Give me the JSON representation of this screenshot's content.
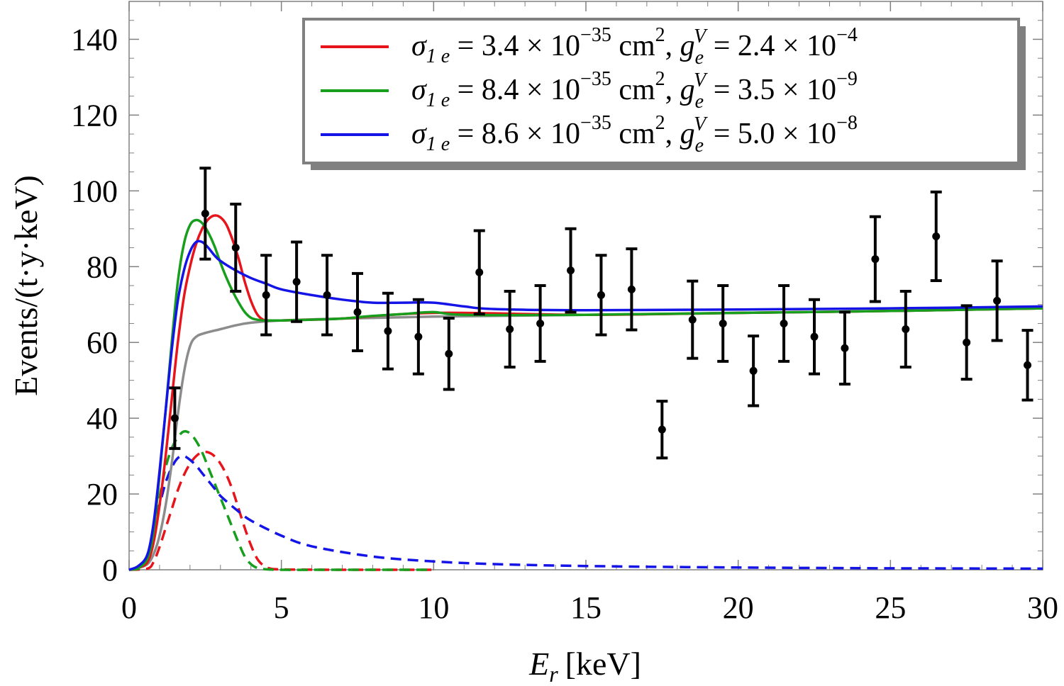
{
  "chart_data": {
    "type": "line",
    "title": "",
    "xlabel": "E_r [keV]",
    "xlabel_main": "E",
    "xlabel_sub": "r",
    "xlabel_unit": "[keV]",
    "ylabel": "Events/(t·y·keV)",
    "xlim": [
      0,
      30
    ],
    "ylim": [
      0,
      150
    ],
    "xticks": [
      0,
      5,
      10,
      15,
      20,
      25,
      30
    ],
    "yticks": [
      0,
      20,
      40,
      60,
      80,
      100,
      120,
      140
    ],
    "grid": false,
    "legend_position": "top-right",
    "colors": {
      "red": "#e8141b",
      "green": "#179e1d",
      "blue": "#1414e6",
      "gray": "#8c8c8c",
      "data": "#000000"
    },
    "legend": [
      {
        "color": "red",
        "sigma_prefix": "σ",
        "sigma_sub": "1 e",
        "sigma_mid": " = 3.4 × 10",
        "sigma_exp": "−35",
        "unit": " cm",
        "unit_exp": "2",
        "sep": ", ",
        "g": "g",
        "g_sub": "e",
        "g_sup": "V",
        "g_mid": " = 2.4 × 10",
        "g_exp": "−4"
      },
      {
        "color": "green",
        "sigma_prefix": "σ",
        "sigma_sub": "1 e",
        "sigma_mid": " = 8.4 × 10",
        "sigma_exp": "−35",
        "unit": " cm",
        "unit_exp": "2",
        "sep": ", ",
        "g": "g",
        "g_sub": "e",
        "g_sup": "V",
        "g_mid": " = 3.5 × 10",
        "g_exp": "−9"
      },
      {
        "color": "blue",
        "sigma_prefix": "σ",
        "sigma_sub": "1 e",
        "sigma_mid": " = 8.6 × 10",
        "sigma_exp": "−35",
        "unit": " cm",
        "unit_exp": "2",
        "sep": ", ",
        "g": "g",
        "g_sub": "e",
        "g_sup": "V",
        "g_mid": " = 5.0 × 10",
        "g_exp": "−8"
      }
    ],
    "data_points": {
      "x": [
        1.5,
        2.5,
        3.5,
        4.5,
        5.5,
        6.5,
        7.5,
        8.5,
        9.5,
        10.5,
        11.5,
        12.5,
        13.5,
        14.5,
        15.5,
        16.5,
        17.5,
        18.5,
        19.5,
        20.5,
        21.5,
        22.5,
        23.5,
        24.5,
        25.5,
        26.5,
        27.5,
        28.5,
        29.5
      ],
      "y": [
        40,
        94,
        85,
        72.5,
        76,
        72.5,
        68,
        63,
        61.5,
        57,
        78.5,
        63.5,
        65,
        79,
        72.5,
        74,
        37,
        66,
        65,
        52.5,
        65,
        61.5,
        58.5,
        82,
        63.5,
        88,
        60,
        71,
        54
      ],
      "yerr": [
        8,
        12,
        11.5,
        10.5,
        10.5,
        10.5,
        10.2,
        10,
        9.8,
        9.4,
        11,
        10,
        10,
        11,
        10.5,
        10.7,
        7.5,
        10.2,
        10,
        9.2,
        10,
        9.8,
        9.5,
        11.2,
        10,
        11.7,
        9.7,
        10.5,
        9.2
      ]
    },
    "series": [
      {
        "name": "background",
        "color": "gray",
        "style": "solid",
        "x": [
          0,
          0.3,
          0.6,
          0.8,
          1.0,
          1.2,
          1.4,
          1.6,
          1.8,
          2.0,
          2.2,
          2.5,
          3.0,
          3.5,
          4.0,
          5.0,
          7.0,
          10.0,
          15.0,
          20.0,
          25.0,
          30.0
        ],
        "y": [
          0,
          0.5,
          1.5,
          4,
          9,
          17,
          28,
          41,
          52,
          59,
          61.5,
          62.5,
          63.5,
          64.5,
          65.2,
          65.8,
          66.3,
          66.8,
          67.3,
          67.8,
          68.3,
          69
        ]
      },
      {
        "name": "signal-red-total",
        "color": "red",
        "style": "solid",
        "x": [
          0,
          0.3,
          0.6,
          0.8,
          1.0,
          1.2,
          1.4,
          1.6,
          1.8,
          2.0,
          2.2,
          2.4,
          2.6,
          2.8,
          3.0,
          3.2,
          3.4,
          3.6,
          3.8,
          4.0,
          4.2,
          4.4,
          4.6,
          4.8,
          5.0,
          6.0,
          7.0,
          10.0,
          15.0,
          20.0,
          25.0,
          30.0
        ],
        "y": [
          0,
          0.5,
          2,
          7,
          17,
          30,
          45,
          60,
          72,
          80,
          86,
          90,
          92.5,
          93.5,
          93,
          91,
          87,
          82,
          76,
          71,
          67.5,
          66,
          65.8,
          65.8,
          65.8,
          66,
          66.3,
          67.8,
          67.3,
          67.8,
          68.3,
          69
        ]
      },
      {
        "name": "signal-green-total",
        "color": "green",
        "style": "solid",
        "x": [
          0,
          0.3,
          0.6,
          0.8,
          1.0,
          1.2,
          1.4,
          1.6,
          1.8,
          2.0,
          2.2,
          2.4,
          2.6,
          2.8,
          3.0,
          3.2,
          3.4,
          3.6,
          3.8,
          4.0,
          4.2,
          4.4,
          4.6,
          5.0,
          6.0,
          7.0,
          8.0,
          9.0,
          10.0,
          11.0,
          15.0,
          20.0,
          25.0,
          30.0
        ],
        "y": [
          0,
          0.5,
          3,
          10,
          25,
          42,
          60,
          76,
          86,
          91,
          92.3,
          91.5,
          89,
          85.5,
          81,
          77,
          73.5,
          70.5,
          68,
          66.5,
          66,
          65.8,
          65.8,
          65.8,
          66,
          66.3,
          67,
          67.5,
          68,
          67.3,
          67.3,
          67.8,
          68.3,
          69
        ]
      },
      {
        "name": "signal-blue-total",
        "color": "blue",
        "style": "solid",
        "x": [
          0,
          0.3,
          0.6,
          0.8,
          1.0,
          1.2,
          1.4,
          1.6,
          1.8,
          2.0,
          2.2,
          2.4,
          2.6,
          2.8,
          3.0,
          3.5,
          4.0,
          4.5,
          5.0,
          6.0,
          7.0,
          8.0,
          9.0,
          10.0,
          11.0,
          12.0,
          15.0,
          20.0,
          25.0,
          30.0
        ],
        "y": [
          0,
          1,
          4,
          12,
          26,
          42,
          58,
          71,
          79,
          84,
          86.5,
          86.5,
          85,
          83,
          81.5,
          79,
          77,
          75.5,
          74,
          72.5,
          71.3,
          70.5,
          70.5,
          70.5,
          69.5,
          68.8,
          68.5,
          68.7,
          69,
          69.5
        ]
      },
      {
        "name": "signal-red-only",
        "color": "red",
        "style": "dashed",
        "x": [
          0,
          0.6,
          0.8,
          1.0,
          1.2,
          1.4,
          1.6,
          1.8,
          2.0,
          2.2,
          2.4,
          2.6,
          2.8,
          3.0,
          3.2,
          3.4,
          3.6,
          3.8,
          4.0,
          4.2,
          4.4,
          4.6,
          5.0,
          7.0,
          10.0
        ],
        "y": [
          0,
          0.3,
          2,
          6,
          11,
          16,
          21,
          25,
          28,
          30,
          31,
          31,
          30,
          28,
          25,
          21,
          16,
          11,
          6.5,
          3,
          1.2,
          0.4,
          0.1,
          0,
          0
        ]
      },
      {
        "name": "signal-green-only",
        "color": "green",
        "style": "dashed",
        "x": [
          0,
          0.4,
          0.6,
          0.8,
          1.0,
          1.2,
          1.4,
          1.6,
          1.8,
          2.0,
          2.2,
          2.4,
          2.6,
          2.8,
          3.0,
          3.2,
          3.4,
          3.6,
          3.8,
          4.0,
          4.2,
          4.4,
          5.0,
          7.0,
          10.0
        ],
        "y": [
          0,
          0.5,
          3,
          10,
          19,
          27,
          32,
          35,
          36.5,
          36,
          34,
          31,
          27,
          23,
          19,
          15,
          11,
          7,
          3.5,
          1.5,
          0.5,
          0.2,
          0,
          0,
          0
        ]
      },
      {
        "name": "signal-blue-only",
        "color": "blue",
        "style": "dashed",
        "x": [
          0,
          0.4,
          0.6,
          0.8,
          1.0,
          1.2,
          1.4,
          1.6,
          1.8,
          2.0,
          2.2,
          2.4,
          2.6,
          2.8,
          3.0,
          3.5,
          4.0,
          5.0,
          6.0,
          8.0,
          10.0,
          12.0,
          15.0,
          20.0,
          25.0,
          30.0
        ],
        "y": [
          0,
          1,
          4,
          10,
          17,
          23,
          27,
          29.5,
          30,
          29,
          27.5,
          25.5,
          23.5,
          21.5,
          19.5,
          16,
          13,
          9,
          6.2,
          3.5,
          2.2,
          1.5,
          1.0,
          0.6,
          0.4,
          0.3
        ]
      }
    ]
  }
}
